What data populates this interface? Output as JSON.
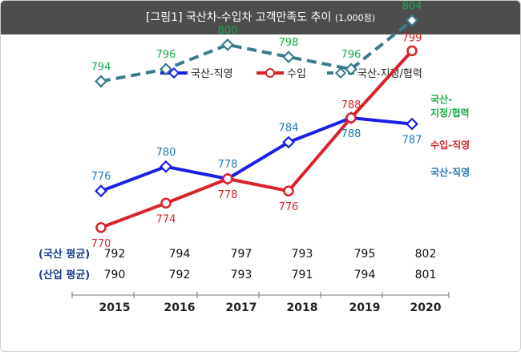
{
  "title": "[그림1] 국산차-수입차 고객만족도 추이",
  "title_sub": "(1,000점)",
  "colors": {
    "domestic_direct": "#1a20e6",
    "import": "#d9222a",
    "domestic_partner": "#3a7b8c",
    "header_bg": "#4d4d4d"
  },
  "chart_data": {
    "type": "line",
    "title": "[그림1] 국산차-수입차 고객만족도 추이 (1,000점)",
    "categories": [
      "2015",
      "2016",
      "2017",
      "2018",
      "2019",
      "2020"
    ],
    "x": [
      "2015",
      "2016",
      "2017",
      "2018",
      "2019",
      "2020"
    ],
    "legend_position": "top",
    "series": [
      {
        "name": "국산-직영",
        "end_label": "국산-직영",
        "values": [
          776,
          780,
          778,
          784,
          788,
          787
        ],
        "color": "#1a20e6",
        "label_color": "#1f78b4",
        "style": "solid",
        "marker": "diamond"
      },
      {
        "name": "수입",
        "end_label": "수입-직영",
        "values": [
          770,
          774,
          778,
          776,
          788,
          799
        ],
        "color": "#d9222a",
        "label_color": "#d9222a",
        "style": "solid",
        "marker": "circle"
      },
      {
        "name": "국산-지정/협력",
        "end_label": "국산-\n지정/협력",
        "values": [
          794,
          796,
          800,
          798,
          796,
          804
        ],
        "color": "#3a7b8c",
        "label_color": "#1aaa4a",
        "style": "dashed",
        "marker": "diamond"
      }
    ],
    "table": [
      {
        "label": "(국산 평균)",
        "values": [
          792,
          794,
          797,
          793,
          795,
          802
        ]
      },
      {
        "label": "(산업 평균)",
        "values": [
          790,
          792,
          793,
          791,
          794,
          801
        ]
      }
    ]
  }
}
